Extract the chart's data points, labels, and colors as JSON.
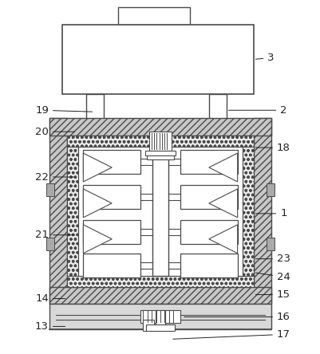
{
  "bg_color": "#ffffff",
  "line_color": "#4a4a4a",
  "fig_width": 4.02,
  "fig_height": 4.44,
  "outer_wall_color": "#b0b0b0",
  "insulation_color": "#e0e0e0",
  "hatch_wall": "////",
  "hatch_dot": "ooo"
}
